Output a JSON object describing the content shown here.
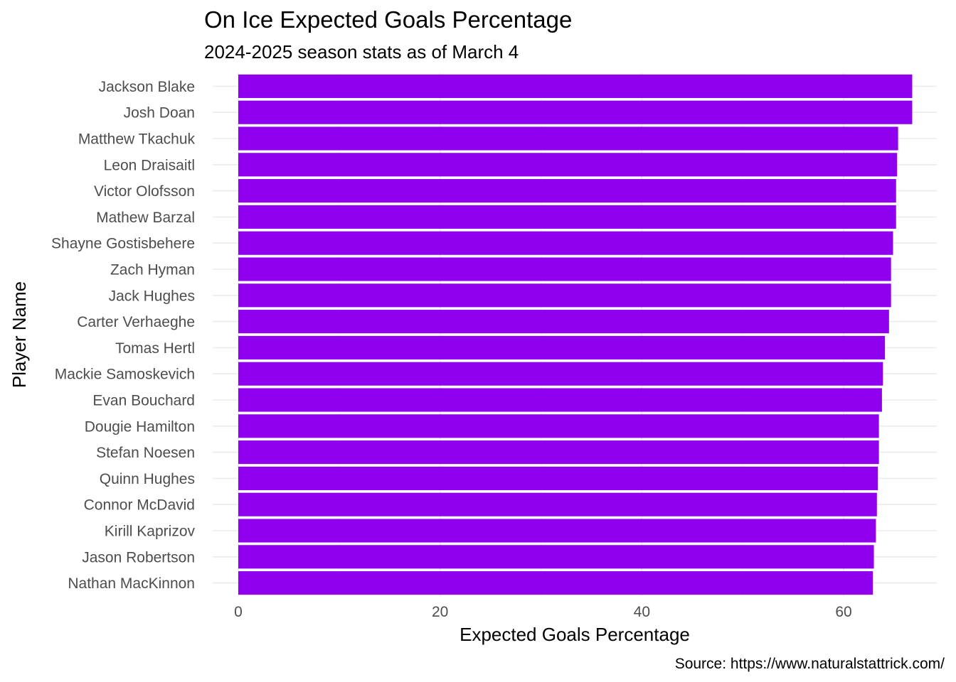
{
  "chart_data": {
    "type": "bar",
    "orientation": "horizontal",
    "title": "On Ice Expected Goals Percentage",
    "subtitle": "2024-2025 season stats as of March 4",
    "xlabel": "Expected Goals Percentage",
    "ylabel": "Player Name",
    "caption": "Source: https://www.naturalstattrick.com/",
    "xlim": [
      0,
      70
    ],
    "x_ticks": [
      0,
      20,
      40,
      60
    ],
    "x_tick_labels": [
      "0",
      "20",
      "40",
      "60"
    ],
    "grid": true,
    "legend": "none",
    "bar_color": "#8f00ee",
    "categories": [
      "Jackson Blake",
      "Josh Doan",
      "Matthew Tkachuk",
      "Leon Draisaitl",
      "Victor Olofsson",
      "Mathew Barzal",
      "Shayne Gostisbehere",
      "Zach Hyman",
      "Jack Hughes",
      "Carter Verhaeghe",
      "Tomas Hertl",
      "Mackie Samoskevich",
      "Evan Bouchard",
      "Dougie Hamilton",
      "Stefan Noesen",
      "Quinn Hughes",
      "Connor McDavid",
      "Kirill Kaprizov",
      "Jason Robertson",
      "Nathan MacKinnon"
    ],
    "values": [
      66.8,
      66.8,
      65.4,
      65.3,
      65.2,
      65.2,
      64.9,
      64.7,
      64.7,
      64.5,
      64.1,
      63.9,
      63.8,
      63.5,
      63.5,
      63.4,
      63.3,
      63.2,
      63.0,
      62.9
    ]
  }
}
